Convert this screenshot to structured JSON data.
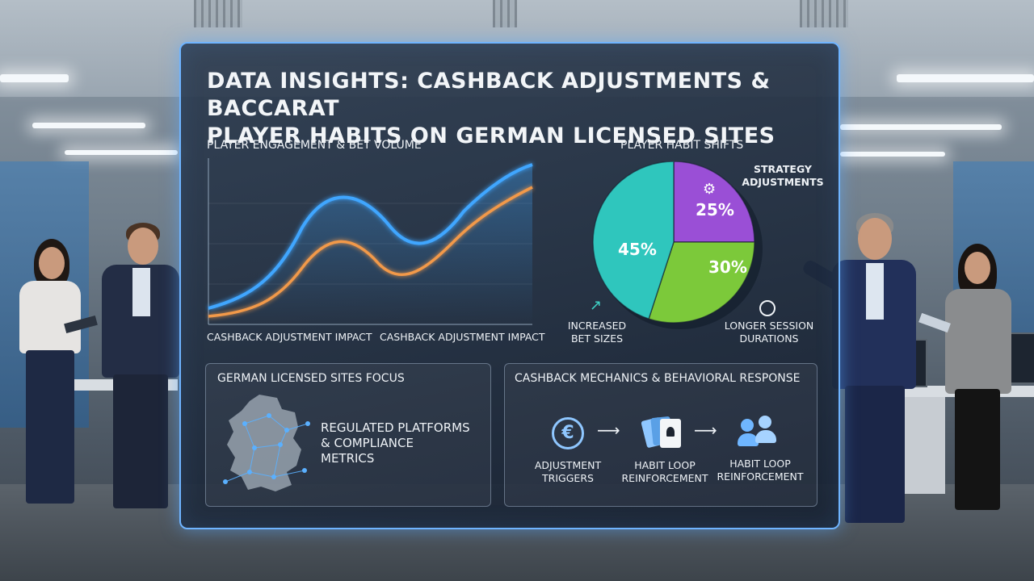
{
  "title_line1": "DATA INSIGHTS: CASHBACK ADJUSTMENTS & BACCARAT",
  "title_line2": "PLAYER HABITS ON GERMAN LICENSED SITES",
  "line_chart": {
    "label": "PLAYER ENGAGEMENT & BET VOLUME",
    "x_labels": [
      "CASHBACK ADJUSTMENT IMPACT",
      "CASHBACK ADJUSTMENT IMPACT"
    ],
    "colors": {
      "blue": "#3fa6ff",
      "orange": "#f2994a"
    }
  },
  "chart_data": {
    "type": "pie",
    "title": "PLAYER HABIT SHIFTS",
    "slices": [
      {
        "label": "INCREASED BET SIZES",
        "value": 45,
        "display": "45%",
        "color": "#2fc6bd"
      },
      {
        "label": "STRATEGY ADJUSTMENTS",
        "value": 25,
        "display": "25%",
        "color": "#9a4fd6"
      },
      {
        "label": "LONGER SESSION DURATIONS",
        "value": 30,
        "display": "30%",
        "color": "#7cc93a"
      }
    ]
  },
  "pie_labels": {
    "strategy_l1": "STRATEGY",
    "strategy_l2": "ADJUSTMENTS",
    "bet_l1": "INCREASED",
    "bet_l2": "BET SIZES",
    "session_l1": "LONGER SESSION",
    "session_l2": "DURATIONS"
  },
  "german_box": {
    "heading": "GERMAN LICENSED SITES FOCUS",
    "line1": "REGULATED PLATFORMS",
    "line2": "& COMPLIANCE",
    "line3": "METRICS"
  },
  "mechanics_box": {
    "heading": "CASHBACK MECHANICS & BEHAVIORAL RESPONSE",
    "step1_l1": "ADJUSTMENT",
    "step1_l2": "TRIGGERS",
    "step2_l1": "HABIT LOOP",
    "step2_l2": "REINFORCEMENT",
    "step3_l1": "HABIT LOOP",
    "step3_l2": "REINFORCEMENT",
    "euro_symbol": "€",
    "icons": [
      "euro-icon",
      "cards-icon",
      "users-icon"
    ]
  }
}
